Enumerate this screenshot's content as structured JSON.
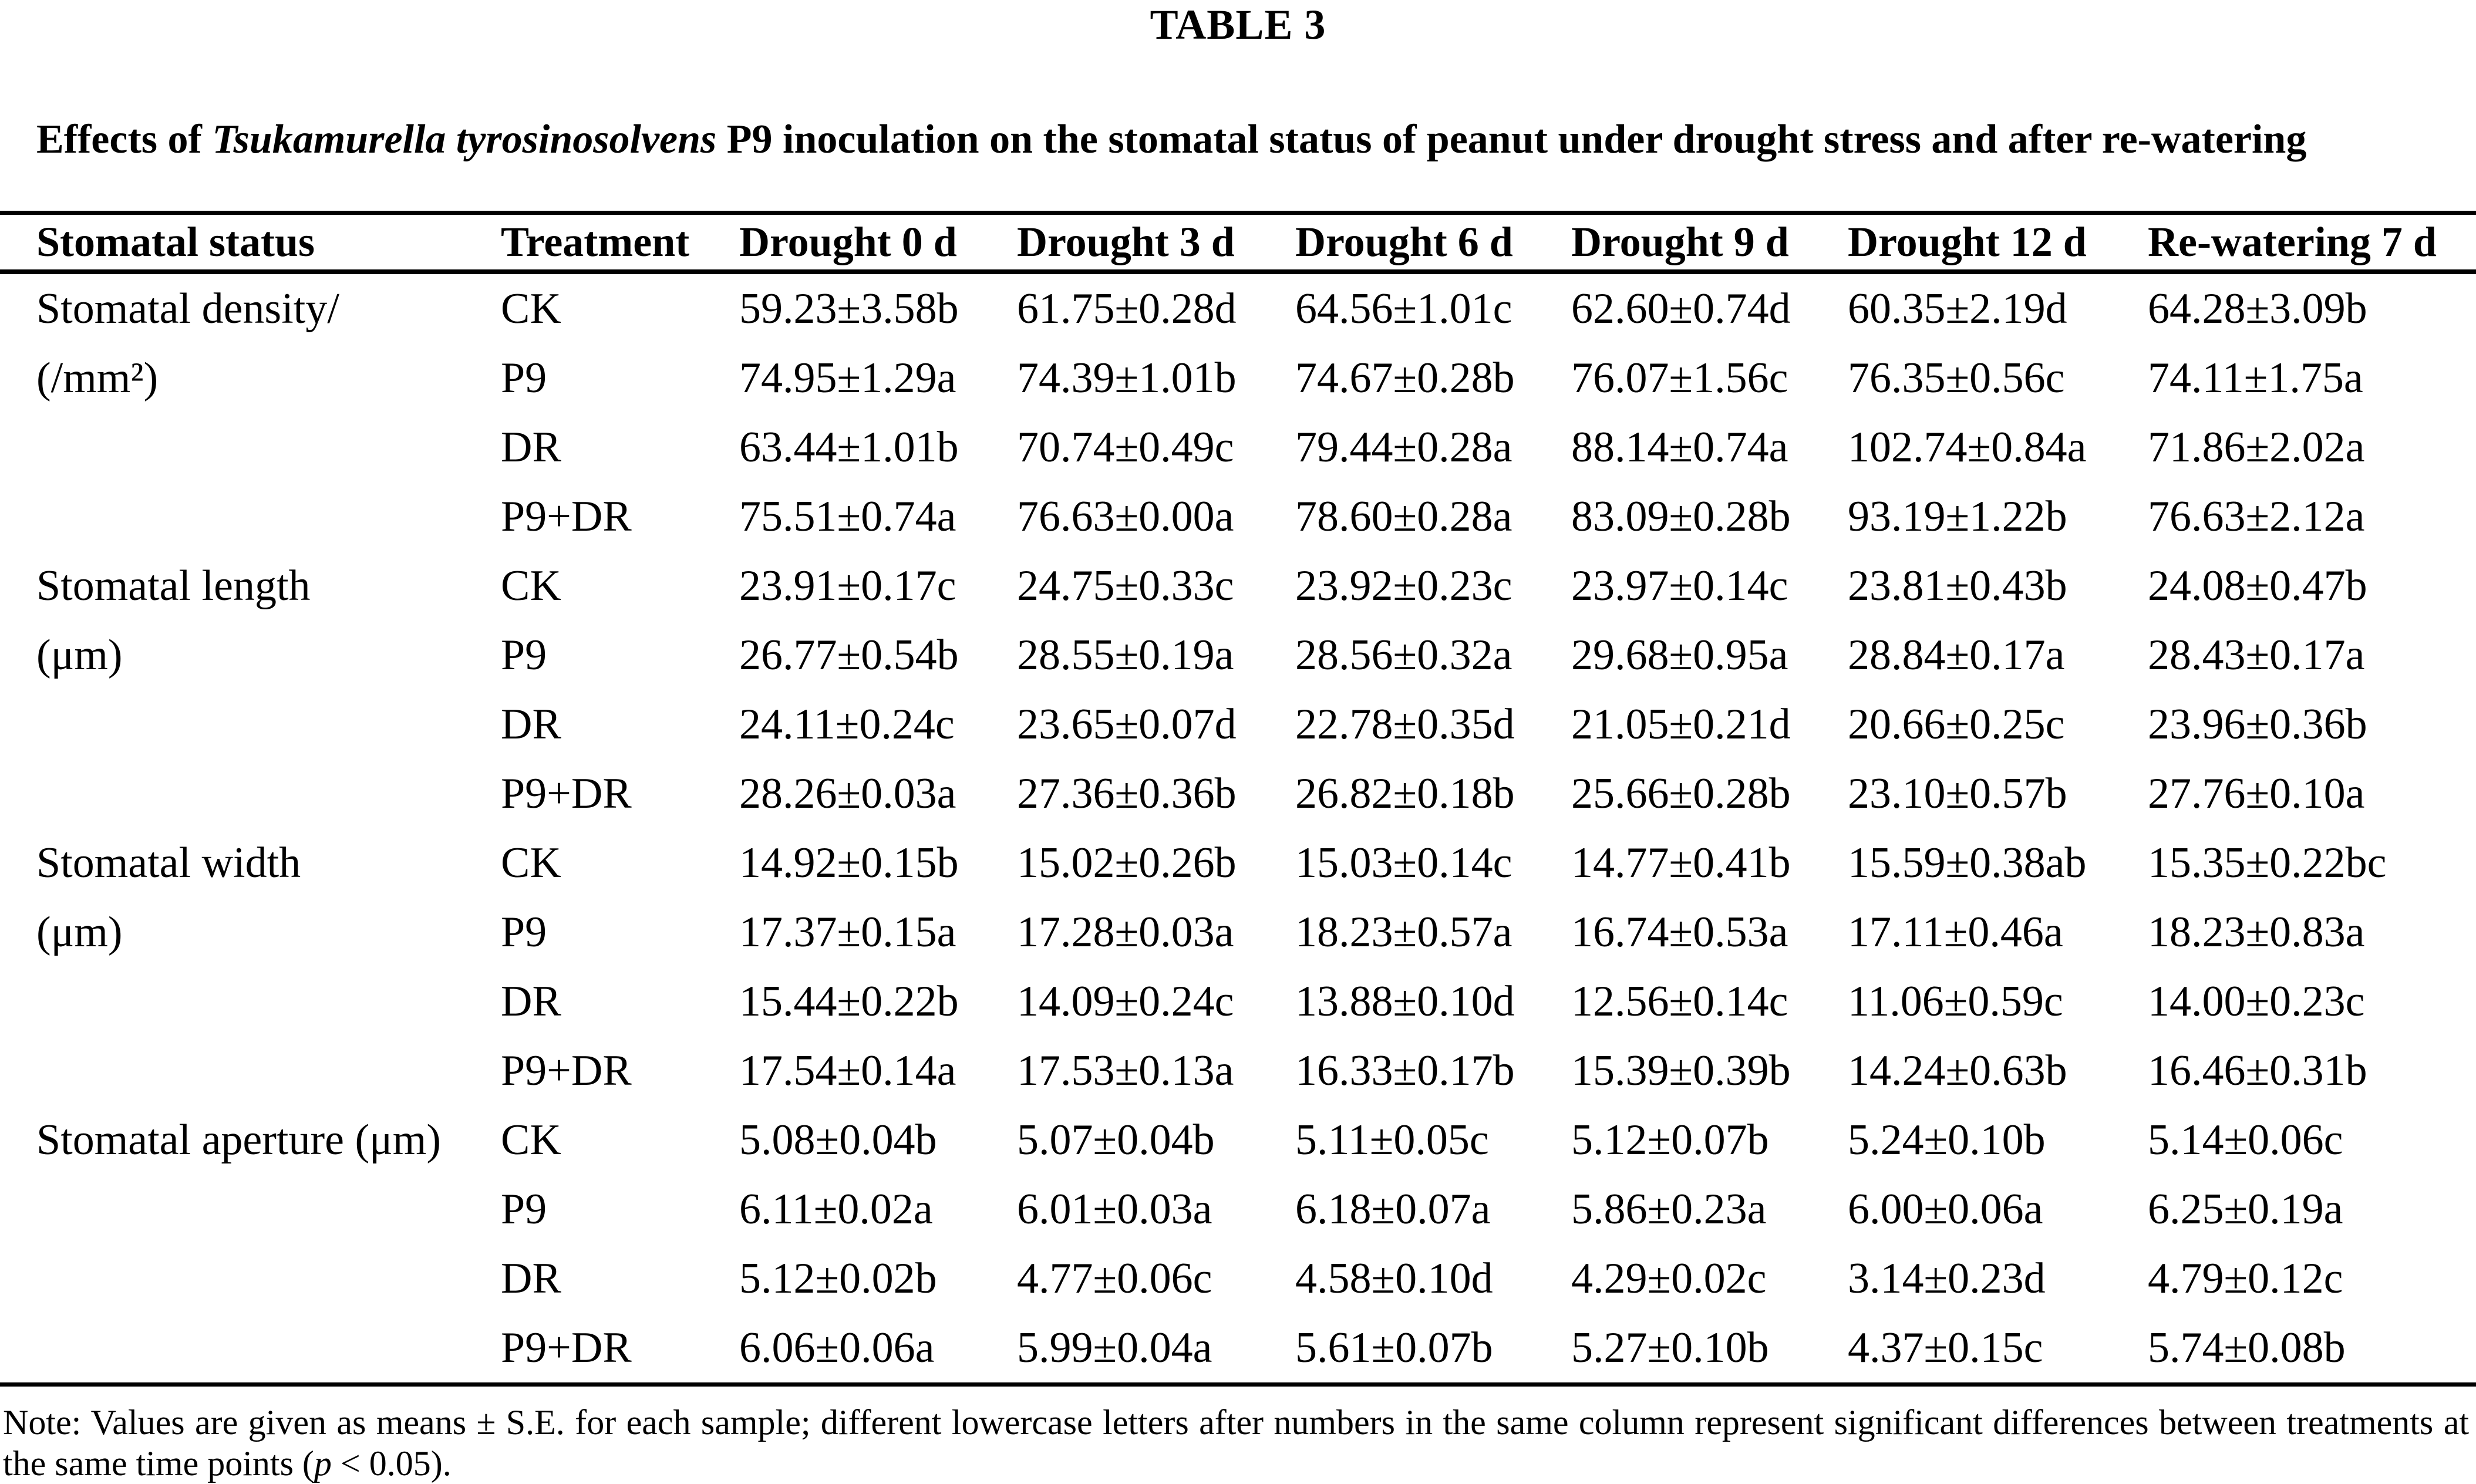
{
  "title": "TABLE 3",
  "caption": {
    "prefix": "Effects of ",
    "species": "Tsukamurella tyrosinosolvens",
    "suffix": " P9 inoculation on the stomatal status of peanut under drought stress and after re-watering"
  },
  "table": {
    "columns": [
      "Stomatal status",
      "Treatment",
      "Drought 0 d",
      "Drought 3 d",
      "Drought 6 d",
      "Drought 9 d",
      "Drought 12 d",
      "Re-watering 7 d"
    ],
    "groups": [
      {
        "label_line1": "Stomatal density/",
        "label_line2": "(/mm²)",
        "rows": [
          {
            "treatment": "CK",
            "values": [
              "59.23±3.58b",
              "61.75±0.28d",
              "64.56±1.01c",
              "62.60±0.74d",
              "60.35±2.19d",
              "64.28±3.09b"
            ]
          },
          {
            "treatment": "P9",
            "values": [
              "74.95±1.29a",
              "74.39±1.01b",
              "74.67±0.28b",
              "76.07±1.56c",
              "76.35±0.56c",
              "74.11±1.75a"
            ]
          },
          {
            "treatment": "DR",
            "values": [
              "63.44±1.01b",
              "70.74±0.49c",
              "79.44±0.28a",
              "88.14±0.74a",
              "102.74±0.84a",
              "71.86±2.02a"
            ]
          },
          {
            "treatment": "P9+DR",
            "values": [
              "75.51±0.74a",
              "76.63±0.00a",
              "78.60±0.28a",
              "83.09±0.28b",
              "93.19±1.22b",
              "76.63±2.12a"
            ]
          }
        ]
      },
      {
        "label_line1": "Stomatal length",
        "label_line2": "(μm)",
        "rows": [
          {
            "treatment": "CK",
            "values": [
              "23.91±0.17c",
              "24.75±0.33c",
              "23.92±0.23c",
              "23.97±0.14c",
              "23.81±0.43b",
              "24.08±0.47b"
            ]
          },
          {
            "treatment": "P9",
            "values": [
              "26.77±0.54b",
              "28.55±0.19a",
              "28.56±0.32a",
              "29.68±0.95a",
              "28.84±0.17a",
              "28.43±0.17a"
            ]
          },
          {
            "treatment": "DR",
            "values": [
              "24.11±0.24c",
              "23.65±0.07d",
              "22.78±0.35d",
              "21.05±0.21d",
              "20.66±0.25c",
              "23.96±0.36b"
            ]
          },
          {
            "treatment": "P9+DR",
            "values": [
              "28.26±0.03a",
              "27.36±0.36b",
              "26.82±0.18b",
              "25.66±0.28b",
              "23.10±0.57b",
              "27.76±0.10a"
            ]
          }
        ]
      },
      {
        "label_line1": "Stomatal width",
        "label_line2": "(μm)",
        "rows": [
          {
            "treatment": "CK",
            "values": [
              "14.92±0.15b",
              "15.02±0.26b",
              "15.03±0.14c",
              "14.77±0.41b",
              "15.59±0.38ab",
              "15.35±0.22bc"
            ]
          },
          {
            "treatment": "P9",
            "values": [
              "17.37±0.15a",
              "17.28±0.03a",
              "18.23±0.57a",
              "16.74±0.53a",
              "17.11±0.46a",
              "18.23±0.83a"
            ]
          },
          {
            "treatment": "DR",
            "values": [
              "15.44±0.22b",
              "14.09±0.24c",
              "13.88±0.10d",
              "12.56±0.14c",
              "11.06±0.59c",
              "14.00±0.23c"
            ]
          },
          {
            "treatment": "P9+DR",
            "values": [
              "17.54±0.14a",
              "17.53±0.13a",
              "16.33±0.17b",
              "15.39±0.39b",
              "14.24±0.63b",
              "16.46±0.31b"
            ]
          }
        ]
      },
      {
        "label_line1": "Stomatal aperture (μm)",
        "label_line2": "",
        "rows": [
          {
            "treatment": "CK",
            "values": [
              "5.08±0.04b",
              "5.07±0.04b",
              "5.11±0.05c",
              "5.12±0.07b",
              "5.24±0.10b",
              "5.14±0.06c"
            ]
          },
          {
            "treatment": "P9",
            "values": [
              "6.11±0.02a",
              "6.01±0.03a",
              "6.18±0.07a",
              "5.86±0.23a",
              "6.00±0.06a",
              "6.25±0.19a"
            ]
          },
          {
            "treatment": "DR",
            "values": [
              "5.12±0.02b",
              "4.77±0.06c",
              "4.58±0.10d",
              "4.29±0.02c",
              "3.14±0.23d",
              "4.79±0.12c"
            ]
          },
          {
            "treatment": "P9+DR",
            "values": [
              "6.06±0.06a",
              "5.99±0.04a",
              "5.61±0.07b",
              "5.27±0.10b",
              "4.37±0.15c",
              "5.74±0.08b"
            ]
          }
        ]
      }
    ]
  },
  "note": {
    "part1": "Note: Values are given as means ± S.E. for each sample; different lowercase letters after numbers in the same column represent significant differences between treatments at the same time points (",
    "p": "p",
    "part2": " < 0.05)."
  }
}
